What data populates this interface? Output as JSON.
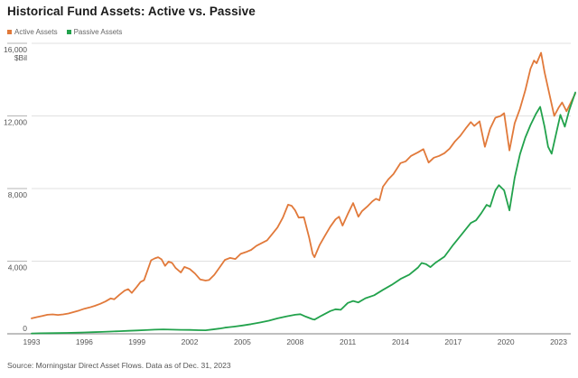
{
  "page": {
    "title": "Historical Fund Assets: Active vs. Passive",
    "source_note": "Source: Morningstar Direct Asset Flows. Data as of Dec. 31, 2023"
  },
  "chart_data": {
    "type": "line",
    "title": "Historical Fund Assets: Active vs. Passive",
    "unit_label": "$Bil",
    "x_range": [
      1993,
      2024
    ],
    "y_range": [
      0,
      16000
    ],
    "y_ticks": [
      0,
      4000,
      8000,
      12000,
      16000
    ],
    "y_tick_labels": [
      "0",
      "4,000",
      "8,000",
      "12,000",
      "16,000"
    ],
    "x_ticks": [
      1993,
      1996,
      1999,
      2002,
      2005,
      2008,
      2011,
      2014,
      2017,
      2020,
      2023
    ],
    "grid": "horizontal",
    "legend_position": "top-left",
    "colors": {
      "grid": "#e0e0e0",
      "tick": "#b5b5b5",
      "axis": "#999999",
      "label": "#555555"
    },
    "series": [
      {
        "name": "Active Assets",
        "color": "#e1793a",
        "points": [
          [
            1993.0,
            850
          ],
          [
            1993.3,
            920
          ],
          [
            1993.6,
            980
          ],
          [
            1993.9,
            1050
          ],
          [
            1994.2,
            1070
          ],
          [
            1994.5,
            1040
          ],
          [
            1994.8,
            1070
          ],
          [
            1995.1,
            1120
          ],
          [
            1995.4,
            1200
          ],
          [
            1995.7,
            1280
          ],
          [
            1996.0,
            1380
          ],
          [
            1996.3,
            1450
          ],
          [
            1996.6,
            1540
          ],
          [
            1996.9,
            1650
          ],
          [
            1997.2,
            1780
          ],
          [
            1997.5,
            1950
          ],
          [
            1997.7,
            1900
          ],
          [
            1998.0,
            2150
          ],
          [
            1998.3,
            2380
          ],
          [
            1998.5,
            2460
          ],
          [
            1998.7,
            2250
          ],
          [
            1999.0,
            2600
          ],
          [
            1999.2,
            2850
          ],
          [
            1999.4,
            2950
          ],
          [
            1999.6,
            3500
          ],
          [
            1999.8,
            4050
          ],
          [
            2000.0,
            4150
          ],
          [
            2000.2,
            4220
          ],
          [
            2000.4,
            4100
          ],
          [
            2000.6,
            3740
          ],
          [
            2000.8,
            3980
          ],
          [
            2001.0,
            3900
          ],
          [
            2001.2,
            3620
          ],
          [
            2001.5,
            3380
          ],
          [
            2001.7,
            3680
          ],
          [
            2002.0,
            3570
          ],
          [
            2002.3,
            3320
          ],
          [
            2002.6,
            2990
          ],
          [
            2002.9,
            2930
          ],
          [
            2003.1,
            2960
          ],
          [
            2003.4,
            3250
          ],
          [
            2003.7,
            3650
          ],
          [
            2004.0,
            4070
          ],
          [
            2004.3,
            4180
          ],
          [
            2004.6,
            4120
          ],
          [
            2004.9,
            4400
          ],
          [
            2005.2,
            4500
          ],
          [
            2005.5,
            4620
          ],
          [
            2005.8,
            4850
          ],
          [
            2006.1,
            5000
          ],
          [
            2006.4,
            5150
          ],
          [
            2006.7,
            5500
          ],
          [
            2007.0,
            5860
          ],
          [
            2007.3,
            6400
          ],
          [
            2007.6,
            7110
          ],
          [
            2007.8,
            7050
          ],
          [
            2008.0,
            6800
          ],
          [
            2008.2,
            6400
          ],
          [
            2008.5,
            6420
          ],
          [
            2008.8,
            5300
          ],
          [
            2009.0,
            4400
          ],
          [
            2009.1,
            4220
          ],
          [
            2009.4,
            4900
          ],
          [
            2009.7,
            5400
          ],
          [
            2010.0,
            5900
          ],
          [
            2010.3,
            6300
          ],
          [
            2010.5,
            6450
          ],
          [
            2010.7,
            5960
          ],
          [
            2011.0,
            6600
          ],
          [
            2011.3,
            7200
          ],
          [
            2011.6,
            6450
          ],
          [
            2011.8,
            6750
          ],
          [
            2012.1,
            7000
          ],
          [
            2012.4,
            7300
          ],
          [
            2012.6,
            7440
          ],
          [
            2012.8,
            7350
          ],
          [
            2013.0,
            8100
          ],
          [
            2013.3,
            8500
          ],
          [
            2013.6,
            8800
          ],
          [
            2014.0,
            9400
          ],
          [
            2014.3,
            9500
          ],
          [
            2014.6,
            9800
          ],
          [
            2015.0,
            10000
          ],
          [
            2015.3,
            10170
          ],
          [
            2015.6,
            9430
          ],
          [
            2015.9,
            9700
          ],
          [
            2016.2,
            9800
          ],
          [
            2016.5,
            9950
          ],
          [
            2016.8,
            10200
          ],
          [
            2017.1,
            10600
          ],
          [
            2017.4,
            10900
          ],
          [
            2017.7,
            11300
          ],
          [
            2018.0,
            11660
          ],
          [
            2018.2,
            11450
          ],
          [
            2018.5,
            11700
          ],
          [
            2018.8,
            10300
          ],
          [
            2019.1,
            11300
          ],
          [
            2019.4,
            11900
          ],
          [
            2019.7,
            12000
          ],
          [
            2019.9,
            12150
          ],
          [
            2020.2,
            10100
          ],
          [
            2020.5,
            11600
          ],
          [
            2020.8,
            12400
          ],
          [
            2021.1,
            13400
          ],
          [
            2021.4,
            14600
          ],
          [
            2021.6,
            15050
          ],
          [
            2021.75,
            14900
          ],
          [
            2022.0,
            15480
          ],
          [
            2022.2,
            14400
          ],
          [
            2022.5,
            13100
          ],
          [
            2022.75,
            12000
          ],
          [
            2023.0,
            12450
          ],
          [
            2023.2,
            12740
          ],
          [
            2023.45,
            12260
          ],
          [
            2023.7,
            12750
          ],
          [
            2023.95,
            13230
          ]
        ]
      },
      {
        "name": "Passive Assets",
        "color": "#22a24c",
        "points": [
          [
            1993.0,
            20
          ],
          [
            1993.5,
            28
          ],
          [
            1994.0,
            35
          ],
          [
            1994.5,
            42
          ],
          [
            1995.0,
            52
          ],
          [
            1995.5,
            62
          ],
          [
            1996.0,
            75
          ],
          [
            1996.5,
            88
          ],
          [
            1997.0,
            105
          ],
          [
            1997.5,
            125
          ],
          [
            1998.0,
            145
          ],
          [
            1998.5,
            165
          ],
          [
            1999.0,
            185
          ],
          [
            1999.5,
            205
          ],
          [
            2000.0,
            230
          ],
          [
            2000.5,
            245
          ],
          [
            2001.0,
            230
          ],
          [
            2001.5,
            220
          ],
          [
            2002.0,
            215
          ],
          [
            2002.5,
            200
          ],
          [
            2002.9,
            195
          ],
          [
            2003.3,
            240
          ],
          [
            2003.7,
            290
          ],
          [
            2004.0,
            340
          ],
          [
            2004.5,
            395
          ],
          [
            2005.0,
            455
          ],
          [
            2005.5,
            530
          ],
          [
            2006.0,
            620
          ],
          [
            2006.5,
            720
          ],
          [
            2007.0,
            850
          ],
          [
            2007.5,
            960
          ],
          [
            2008.0,
            1050
          ],
          [
            2008.3,
            1080
          ],
          [
            2008.6,
            950
          ],
          [
            2009.0,
            800
          ],
          [
            2009.1,
            780
          ],
          [
            2009.5,
            1000
          ],
          [
            2010.0,
            1250
          ],
          [
            2010.3,
            1350
          ],
          [
            2010.6,
            1320
          ],
          [
            2011.0,
            1700
          ],
          [
            2011.3,
            1810
          ],
          [
            2011.6,
            1730
          ],
          [
            2012.0,
            1960
          ],
          [
            2012.5,
            2120
          ],
          [
            2013.0,
            2420
          ],
          [
            2013.5,
            2700
          ],
          [
            2014.0,
            3020
          ],
          [
            2014.5,
            3260
          ],
          [
            2015.0,
            3650
          ],
          [
            2015.2,
            3900
          ],
          [
            2015.45,
            3840
          ],
          [
            2015.7,
            3670
          ],
          [
            2016.0,
            3920
          ],
          [
            2016.5,
            4250
          ],
          [
            2017.0,
            4900
          ],
          [
            2017.5,
            5500
          ],
          [
            2018.0,
            6100
          ],
          [
            2018.3,
            6250
          ],
          [
            2018.6,
            6650
          ],
          [
            2018.9,
            7100
          ],
          [
            2019.1,
            7000
          ],
          [
            2019.4,
            7900
          ],
          [
            2019.6,
            8190
          ],
          [
            2019.9,
            7900
          ],
          [
            2020.2,
            6800
          ],
          [
            2020.5,
            8600
          ],
          [
            2020.8,
            9900
          ],
          [
            2021.1,
            10800
          ],
          [
            2021.4,
            11500
          ],
          [
            2021.7,
            12100
          ],
          [
            2021.95,
            12500
          ],
          [
            2022.2,
            11400
          ],
          [
            2022.4,
            10300
          ],
          [
            2022.6,
            9920
          ],
          [
            2022.9,
            11200
          ],
          [
            2023.1,
            12060
          ],
          [
            2023.35,
            11410
          ],
          [
            2023.6,
            12300
          ],
          [
            2023.95,
            13290
          ]
        ]
      }
    ]
  }
}
